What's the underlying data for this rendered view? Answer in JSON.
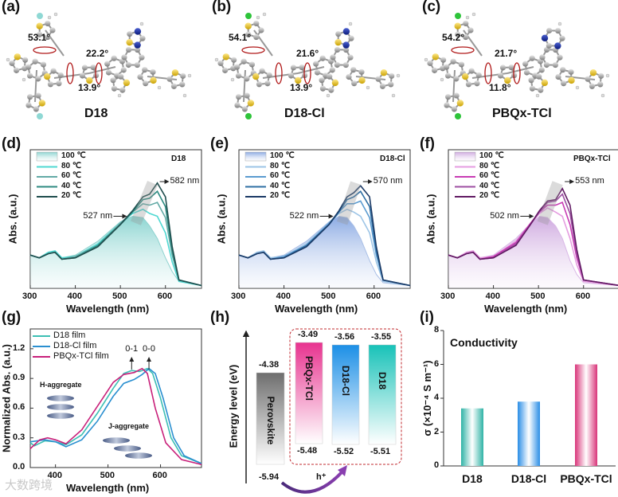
{
  "panel_labels": [
    "(a)",
    "(b)",
    "(c)",
    "(d)",
    "(e)",
    "(f)",
    "(g)",
    "(h)",
    "(i)"
  ],
  "molecules": [
    {
      "name": "D18",
      "halogen": "F",
      "halogen_color": "#8fd8d4",
      "angles": [
        "53.1°",
        "22.2°",
        "13.9°"
      ]
    },
    {
      "name": "D18-Cl",
      "halogen": "Cl",
      "halogen_color": "#2ec43a",
      "angles": [
        "54.1°",
        "21.6°",
        "13.9°"
      ]
    },
    {
      "name": "PBQx-TCl",
      "halogen": "Cl",
      "halogen_color": "#2ec43a",
      "angles": [
        "54.2°",
        "21.7°",
        "11.8°"
      ]
    }
  ],
  "chart_data": [
    {
      "type": "line",
      "panel": "d",
      "title": "D18",
      "xlabel": "Wavelength (nm)",
      "ylabel": "Abs. (a.u.)",
      "xlim": [
        300,
        680
      ],
      "ylim": [
        0,
        1
      ],
      "xticks": [
        "300",
        "400",
        "500",
        "600"
      ],
      "x": [
        300,
        320,
        340,
        355,
        370,
        400,
        450,
        500,
        527,
        550,
        565,
        582,
        600,
        615,
        630,
        680
      ],
      "series": [
        {
          "name": "100 ℃",
          "color": "#8fd3d0",
          "fill": true,
          "values": [
            0.24,
            0.22,
            0.26,
            0.27,
            0.22,
            0.24,
            0.34,
            0.48,
            0.52,
            0.51,
            0.45,
            0.36,
            0.22,
            0.12,
            0.05,
            0.02
          ]
        },
        {
          "name": "80 ℃",
          "color": "#4fd8d2",
          "values": [
            0.24,
            0.22,
            0.26,
            0.27,
            0.22,
            0.23,
            0.32,
            0.47,
            0.54,
            0.57,
            0.54,
            0.52,
            0.4,
            0.19,
            0.05,
            0.02
          ]
        },
        {
          "name": "60 ℃",
          "color": "#63aaa6",
          "values": [
            0.24,
            0.22,
            0.25,
            0.26,
            0.21,
            0.23,
            0.31,
            0.47,
            0.55,
            0.61,
            0.6,
            0.62,
            0.51,
            0.24,
            0.06,
            0.02
          ]
        },
        {
          "name": "40 ℃",
          "color": "#2c8a80",
          "values": [
            0.24,
            0.22,
            0.25,
            0.26,
            0.21,
            0.22,
            0.31,
            0.46,
            0.55,
            0.64,
            0.65,
            0.7,
            0.59,
            0.27,
            0.06,
            0.02
          ]
        },
        {
          "name": "20 ℃",
          "color": "#1f4d4d",
          "values": [
            0.24,
            0.22,
            0.25,
            0.26,
            0.21,
            0.22,
            0.3,
            0.46,
            0.56,
            0.66,
            0.68,
            0.76,
            0.66,
            0.3,
            0.06,
            0.02
          ]
        }
      ],
      "annotations": [
        "582 nm",
        "527 nm"
      ]
    },
    {
      "type": "line",
      "panel": "e",
      "title": "D18-Cl",
      "xlabel": "Wavelength (nm)",
      "ylabel": "Abs. (a.u.)",
      "xlim": [
        300,
        680
      ],
      "ylim": [
        0,
        1
      ],
      "xticks": [
        "300",
        "400",
        "500",
        "600"
      ],
      "x": [
        300,
        320,
        340,
        355,
        370,
        400,
        450,
        500,
        522,
        540,
        555,
        570,
        590,
        605,
        620,
        680
      ],
      "series": [
        {
          "name": "100 ℃",
          "color": "#a9bfe6",
          "fill": true,
          "values": [
            0.24,
            0.22,
            0.26,
            0.27,
            0.22,
            0.24,
            0.34,
            0.48,
            0.52,
            0.51,
            0.45,
            0.36,
            0.2,
            0.1,
            0.04,
            0.02
          ]
        },
        {
          "name": "80 ℃",
          "color": "#9cc4e6",
          "values": [
            0.24,
            0.22,
            0.26,
            0.27,
            0.22,
            0.23,
            0.32,
            0.47,
            0.54,
            0.57,
            0.55,
            0.52,
            0.4,
            0.19,
            0.05,
            0.02
          ]
        },
        {
          "name": "60 ℃",
          "color": "#5b9bd0",
          "values": [
            0.24,
            0.22,
            0.25,
            0.26,
            0.21,
            0.23,
            0.31,
            0.47,
            0.55,
            0.61,
            0.61,
            0.63,
            0.51,
            0.24,
            0.06,
            0.02
          ]
        },
        {
          "name": "40 ℃",
          "color": "#2e6ea3",
          "values": [
            0.24,
            0.22,
            0.25,
            0.26,
            0.21,
            0.22,
            0.31,
            0.46,
            0.55,
            0.64,
            0.66,
            0.7,
            0.59,
            0.27,
            0.06,
            0.02
          ]
        },
        {
          "name": "20 ℃",
          "color": "#1b3a66",
          "values": [
            0.24,
            0.22,
            0.25,
            0.26,
            0.21,
            0.22,
            0.3,
            0.46,
            0.56,
            0.66,
            0.69,
            0.74,
            0.66,
            0.3,
            0.06,
            0.02
          ]
        }
      ],
      "annotations": [
        "570 nm",
        "522 nm"
      ]
    },
    {
      "type": "line",
      "panel": "f",
      "title": "PBQx-TCl",
      "xlabel": "Wavelength (nm)",
      "ylabel": "Abs. (a.u.)",
      "xlim": [
        300,
        680
      ],
      "ylim": [
        0,
        1
      ],
      "xticks": [
        "300",
        "400",
        "500",
        "600"
      ],
      "x": [
        300,
        320,
        340,
        355,
        370,
        400,
        450,
        480,
        502,
        520,
        538,
        553,
        570,
        585,
        600,
        680
      ],
      "series": [
        {
          "name": "100 ℃",
          "color": "#d9b8e6",
          "fill": true,
          "values": [
            0.24,
            0.22,
            0.26,
            0.27,
            0.22,
            0.24,
            0.36,
            0.46,
            0.52,
            0.51,
            0.45,
            0.36,
            0.2,
            0.1,
            0.04,
            0.02
          ]
        },
        {
          "name": "80 ℃",
          "color": "#e59ce0",
          "values": [
            0.24,
            0.22,
            0.26,
            0.27,
            0.22,
            0.23,
            0.34,
            0.46,
            0.54,
            0.58,
            0.55,
            0.52,
            0.36,
            0.17,
            0.05,
            0.02
          ]
        },
        {
          "name": "60 ℃",
          "color": "#c83cb4",
          "values": [
            0.24,
            0.22,
            0.25,
            0.26,
            0.21,
            0.23,
            0.33,
            0.46,
            0.55,
            0.6,
            0.6,
            0.62,
            0.46,
            0.22,
            0.06,
            0.02
          ]
        },
        {
          "name": "40 ℃",
          "color": "#9c4ea2",
          "values": [
            0.24,
            0.22,
            0.25,
            0.26,
            0.21,
            0.22,
            0.32,
            0.45,
            0.55,
            0.62,
            0.63,
            0.68,
            0.54,
            0.25,
            0.06,
            0.02
          ]
        },
        {
          "name": "20 ℃",
          "color": "#611a63",
          "values": [
            0.24,
            0.22,
            0.25,
            0.26,
            0.21,
            0.22,
            0.31,
            0.45,
            0.56,
            0.63,
            0.64,
            0.72,
            0.6,
            0.28,
            0.06,
            0.02
          ]
        }
      ],
      "annotations": [
        "553 nm",
        "502 nm"
      ]
    },
    {
      "type": "line",
      "panel": "g",
      "xlabel": "Wavelength (nm)",
      "ylabel": "Normalized Abs. (a.u.)",
      "xlim": [
        352,
        678
      ],
      "ylim": [
        0,
        1.4
      ],
      "xticks": [
        "400",
        "500",
        "600"
      ],
      "yticks": [
        "0.0",
        "0.3",
        "0.6",
        "0.9",
        "1.2"
      ],
      "series": [
        {
          "name": "D18 film",
          "color": "#3cbfb4",
          "x": [
            352,
            360,
            380,
            400,
            420,
            450,
            480,
            510,
            530,
            545,
            560,
            575,
            585,
            600,
            620,
            640,
            678
          ],
          "values": [
            0.25,
            0.22,
            0.27,
            0.26,
            0.23,
            0.33,
            0.55,
            0.8,
            0.95,
            0.98,
            0.97,
            1.0,
            0.95,
            0.7,
            0.3,
            0.12,
            0.04
          ]
        },
        {
          "name": "D18-Cl film",
          "color": "#2a8fd0",
          "x": [
            352,
            380,
            400,
            420,
            450,
            480,
            510,
            530,
            550,
            565,
            578,
            590,
            605,
            625,
            645,
            678
          ],
          "values": [
            0.26,
            0.28,
            0.26,
            0.21,
            0.28,
            0.47,
            0.72,
            0.85,
            0.89,
            0.94,
            1.0,
            0.95,
            0.7,
            0.3,
            0.12,
            0.04
          ]
        },
        {
          "name": "PBQx-TCl film",
          "color": "#c8207a",
          "x": [
            352,
            370,
            385,
            400,
            420,
            450,
            480,
            510,
            530,
            550,
            565,
            575,
            590,
            610,
            640,
            678
          ],
          "values": [
            0.19,
            0.28,
            0.3,
            0.28,
            0.24,
            0.38,
            0.62,
            0.86,
            0.94,
            0.96,
            1.0,
            0.95,
            0.6,
            0.25,
            0.08,
            0.03
          ]
        }
      ],
      "annotations": [
        "0-1",
        "0-0",
        "H-aggregate",
        "J-aggregate"
      ]
    },
    {
      "type": "diagram",
      "panel": "h",
      "ylabel": "Energy level (eV)",
      "levels": [
        {
          "name": "Perovskite",
          "lumo": "-4.38",
          "homo": "-5.94",
          "color": "#6e6e6e"
        },
        {
          "name": "PBQx-TCl",
          "lumo": "-3.49",
          "homo": "-5.48",
          "color": "#e8338f"
        },
        {
          "name": "D18-Cl",
          "lumo": "-3.56",
          "homo": "-5.52",
          "color": "#1c8fe6"
        },
        {
          "name": "D18",
          "lumo": "-3.55",
          "homo": "-5.51",
          "color": "#18c2b8"
        }
      ],
      "transfer_label": "h⁺"
    },
    {
      "type": "bar",
      "panel": "i",
      "title": "Conductivity",
      "ylabel": "σ (×10⁻⁴ S m⁻¹)",
      "categories": [
        "D18",
        "D18-Cl",
        "PBQx-TCl"
      ],
      "values": [
        3.4,
        3.8,
        6.0
      ],
      "ylim": [
        0,
        8
      ],
      "yticks": [
        "0",
        "2",
        "4",
        "6",
        "8"
      ],
      "colors": [
        "#2fb3a6",
        "#2a8ee6",
        "#d9357a"
      ]
    }
  ],
  "watermark": "大数跨境"
}
